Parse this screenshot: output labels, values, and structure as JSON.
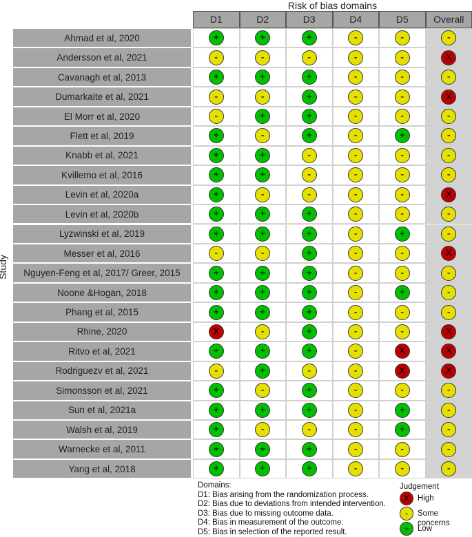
{
  "chart_data": {
    "type": "table",
    "title": "Risk of bias domains",
    "ylabel": "Study",
    "columns": [
      "D1",
      "D2",
      "D3",
      "D4",
      "D5",
      "Overall"
    ],
    "studies": [
      {
        "name": "Ahmad et al, 2020",
        "values": [
          "Low",
          "Low",
          "Low",
          "Some concerns",
          "Some concerns",
          "Some concerns"
        ]
      },
      {
        "name": "Andersson et al, 2021",
        "values": [
          "Some concerns",
          "Some concerns",
          "Some concerns",
          "Some concerns",
          "Some concerns",
          "High"
        ]
      },
      {
        "name": "Cavanagh et al, 2013",
        "values": [
          "Low",
          "Low",
          "Low",
          "Some concerns",
          "Some concerns",
          "Some concerns"
        ]
      },
      {
        "name": "Dumarkaite et al, 2021",
        "values": [
          "Some concerns",
          "Some concerns",
          "Low",
          "Some concerns",
          "Some concerns",
          "High"
        ]
      },
      {
        "name": "El Morr et al, 2020",
        "values": [
          "Some concerns",
          "Low",
          "Low",
          "Some concerns",
          "Some concerns",
          "Some concerns"
        ]
      },
      {
        "name": "Flett et al, 2019",
        "values": [
          "Low",
          "Some concerns",
          "Low",
          "Some concerns",
          "Low",
          "Some concerns"
        ]
      },
      {
        "name": "Knabb et al, 2021",
        "values": [
          "Low",
          "Low",
          "Some concerns",
          "Some concerns",
          "Some concerns",
          "Some concerns"
        ]
      },
      {
        "name": "Kvillemo et al, 2016",
        "values": [
          "Low",
          "Low",
          "Some concerns",
          "Some concerns",
          "Some concerns",
          "Some concerns"
        ]
      },
      {
        "name": "Levin et al, 2020a",
        "values": [
          "Low",
          "Some concerns",
          "Some concerns",
          "Some concerns",
          "Some concerns",
          "High"
        ]
      },
      {
        "name": "Levin et al, 2020b",
        "values": [
          "Low",
          "Low",
          "Low",
          "Some concerns",
          "Some concerns",
          "Some concerns"
        ]
      },
      {
        "name": "Lyzwinski et al, 2019",
        "values": [
          "Low",
          "Low",
          "Low",
          "Some concerns",
          "Low",
          "Some concerns"
        ]
      },
      {
        "name": "Messer et al, 2016",
        "values": [
          "Some concerns",
          "Some concerns",
          "Low",
          "Some concerns",
          "Some concerns",
          "High"
        ]
      },
      {
        "name": "Nguyen-Feng et al, 2017/ Greer, 2015",
        "values": [
          "Low",
          "Low",
          "Low",
          "Some concerns",
          "Some concerns",
          "Some concerns"
        ]
      },
      {
        "name": "Noone &Hogan, 2018",
        "values": [
          "Low",
          "Low",
          "Low",
          "Some concerns",
          "Low",
          "Some concerns"
        ]
      },
      {
        "name": "Phang et al, 2015",
        "values": [
          "Low",
          "Low",
          "Low",
          "Some concerns",
          "Some concerns",
          "Some concerns"
        ]
      },
      {
        "name": "Rhine, 2020",
        "values": [
          "High",
          "Some concerns",
          "Low",
          "Some concerns",
          "Some concerns",
          "High"
        ]
      },
      {
        "name": "Ritvo et al, 2021",
        "values": [
          "Low",
          "Low",
          "Low",
          "Some concerns",
          "High",
          "High"
        ]
      },
      {
        "name": "Rodriguezv et al, 2021",
        "values": [
          "Some concerns",
          "Low",
          "Some concerns",
          "Some concerns",
          "High",
          "High"
        ]
      },
      {
        "name": "Simonsson et al, 2021",
        "values": [
          "Low",
          "Some concerns",
          "Low",
          "Some concerns",
          "Some concerns",
          "Some concerns"
        ]
      },
      {
        "name": "Sun et al, 2021a",
        "values": [
          "Low",
          "Low",
          "Low",
          "Some concerns",
          "Low",
          "Some concerns"
        ]
      },
      {
        "name": "Walsh et al, 2019",
        "values": [
          "Low",
          "Some concerns",
          "Some concerns",
          "Some concerns",
          "Low",
          "Some concerns"
        ]
      },
      {
        "name": "Warnecke et al, 2011",
        "values": [
          "Low",
          "Low",
          "Low",
          "Some concerns",
          "Some concerns",
          "Some concerns"
        ]
      },
      {
        "name": "Yang et al, 2018",
        "values": [
          "Low",
          "Low",
          "Low",
          "Some concerns",
          "Some concerns",
          "Some concerns"
        ]
      }
    ],
    "judgements": {
      "High": {
        "symbol": "X",
        "color": "#c00000"
      },
      "Some concerns": {
        "symbol": "-",
        "color": "#e6e000"
      },
      "Low": {
        "symbol": "+",
        "color": "#00c000"
      }
    },
    "domains_title": "Domains:",
    "domains": [
      "D1: Bias arising from the randomization process.",
      "D2: Bias due to deviations from intended intervention.",
      "D3: Bias due to missing outcome data.",
      "D4: Bias in measurement of the outcome.",
      "D5: Bias in selection of the reported result."
    ],
    "legend_title": "Judgement",
    "legend": [
      "High",
      "Some concerns",
      "Low"
    ]
  }
}
